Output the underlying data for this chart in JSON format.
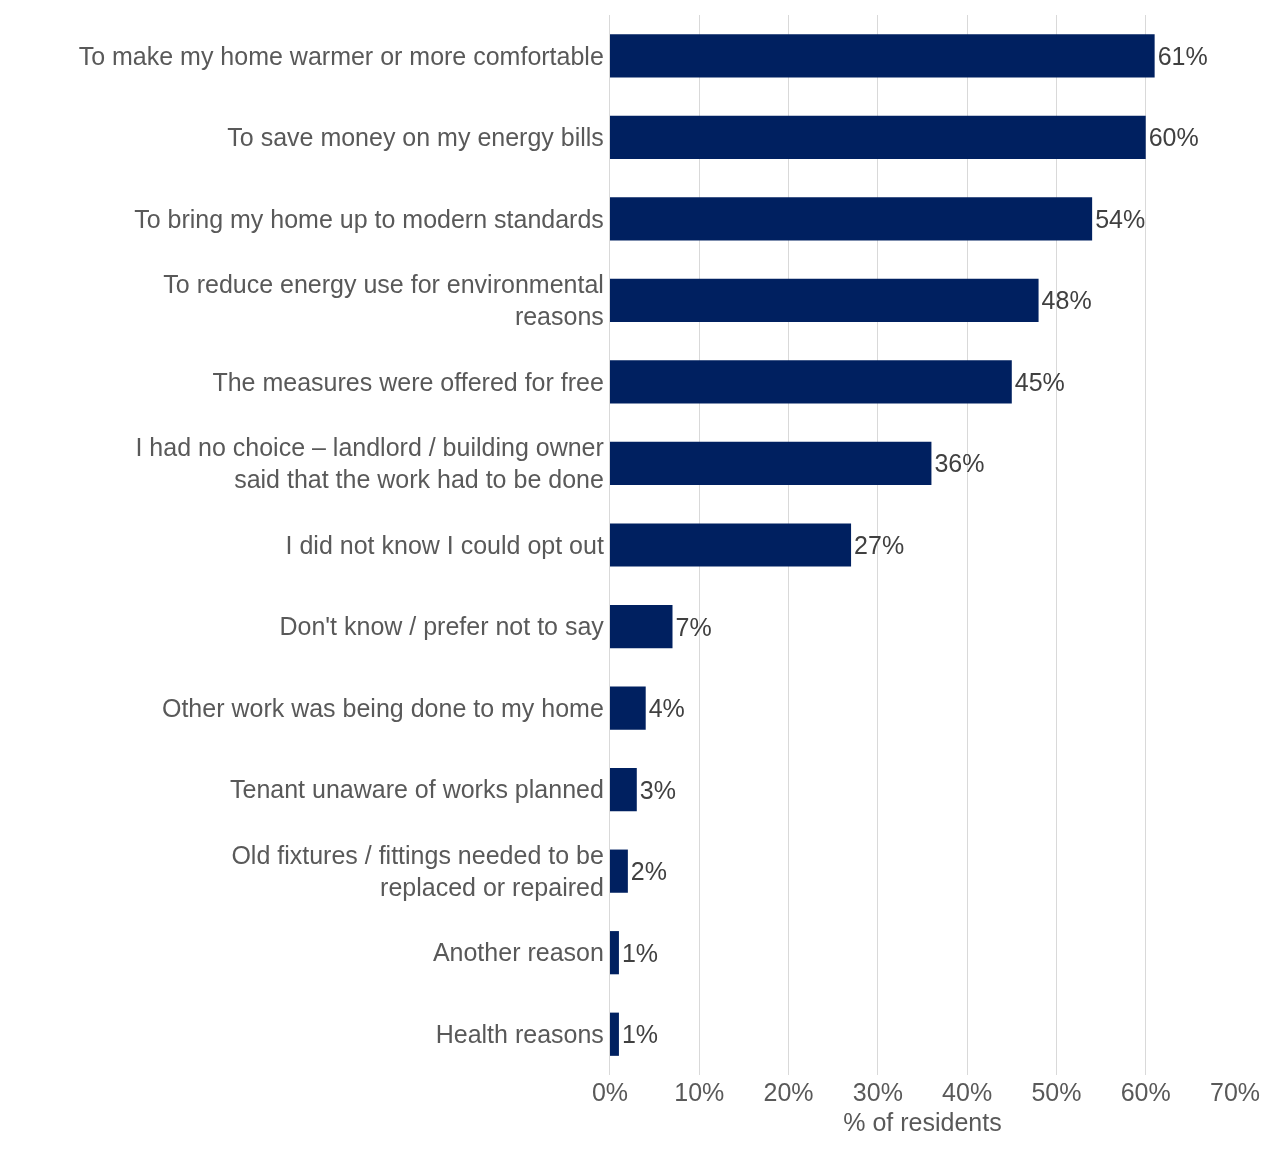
{
  "chart_data": {
    "type": "bar",
    "orientation": "horizontal",
    "categories": [
      "To make my home warmer or more comfortable",
      "To save money on my energy bills",
      "To bring my home up to modern standards",
      "To reduce energy use for environmental reasons",
      "The measures were offered for free",
      "I had no choice – landlord / building owner said that the work had to be done",
      "I did not know I could opt out",
      "Don't know / prefer not to say",
      "Other work was being done to my home",
      "Tenant unaware of works planned",
      "Old fixtures / fittings needed to be replaced or repaired",
      "Another reason",
      "Health reasons"
    ],
    "values": [
      61,
      60,
      54,
      48,
      45,
      36,
      27,
      7,
      4,
      3,
      2,
      1,
      1
    ],
    "value_labels": [
      "61%",
      "60%",
      "54%",
      "48%",
      "45%",
      "36%",
      "27%",
      "7%",
      "4%",
      "3%",
      "2%",
      "1%",
      "1%"
    ],
    "color": "#002060",
    "xlabel": "% of residents",
    "xlim": [
      0,
      70
    ],
    "xticks": [
      {
        "value": 0,
        "label": "0%"
      },
      {
        "value": 10,
        "label": "10%"
      },
      {
        "value": 20,
        "label": "20%"
      },
      {
        "value": 30,
        "label": "30%"
      },
      {
        "value": 40,
        "label": "40%"
      },
      {
        "value": 50,
        "label": "50%"
      },
      {
        "value": 60,
        "label": "60%"
      },
      {
        "value": 70,
        "label": "70%"
      }
    ],
    "grid": "x",
    "legend": false
  }
}
